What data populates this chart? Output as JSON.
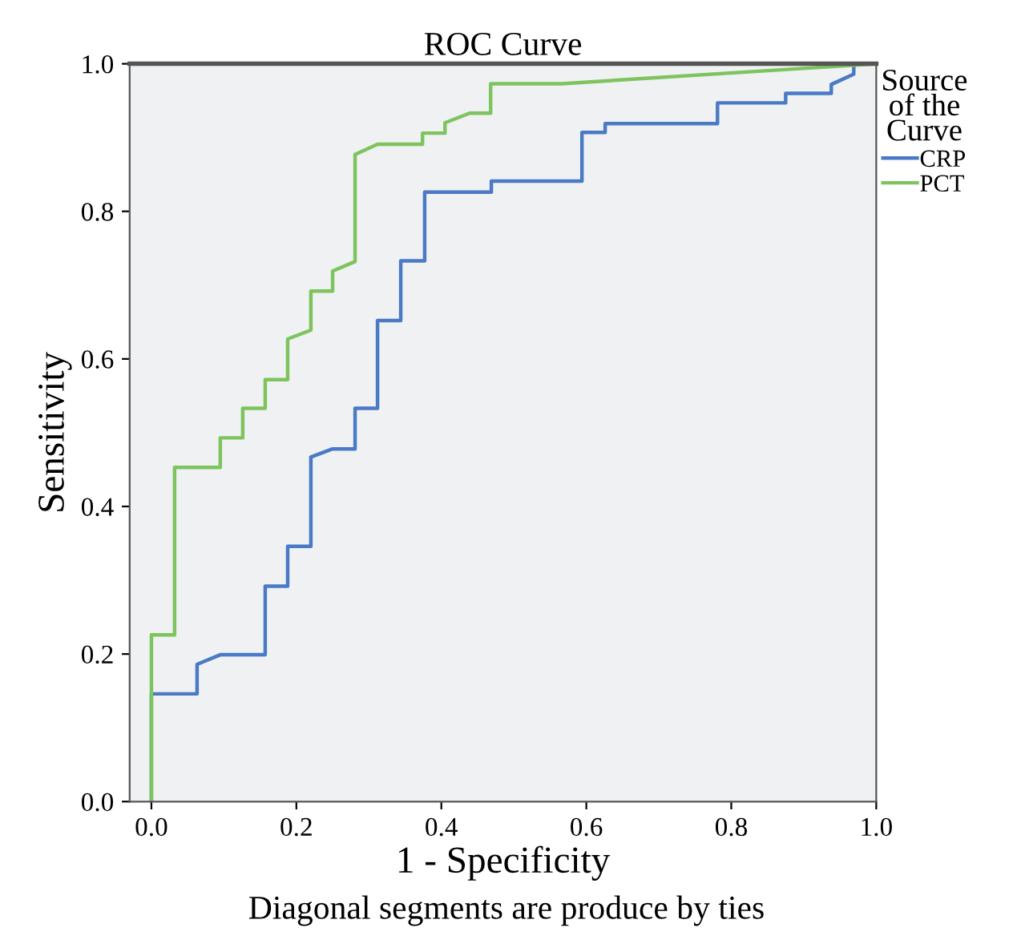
{
  "chart_data": {
    "type": "line",
    "title": "ROC Curve",
    "xlabel": "1 - Specificity",
    "ylabel": "Sensitivity",
    "legend_title": "Source\nof the\nCurve",
    "annotations": [
      "Diagonal segments are produce by ties"
    ],
    "series": [
      {
        "name": "CRP",
        "color": "#4a7ac6",
        "x": [
          0,
          0,
          0.063,
          0.063,
          0.095,
          0.157,
          0.157,
          0.188,
          0.188,
          0.22,
          0.22,
          0.25,
          0.281,
          0.281,
          0.312,
          0.312,
          0.344,
          0.344,
          0.377,
          0.377,
          0.469,
          0.469,
          0.594,
          0.594,
          0.626,
          0.626,
          0.781,
          0.781,
          0.875,
          0.875,
          0.938,
          0.938,
          0.969,
          0.969,
          1.0
        ],
        "values": [
          0,
          0.146,
          0.146,
          0.186,
          0.199,
          0.199,
          0.292,
          0.292,
          0.346,
          0.346,
          0.467,
          0.478,
          0.478,
          0.533,
          0.533,
          0.652,
          0.652,
          0.733,
          0.733,
          0.826,
          0.826,
          0.841,
          0.841,
          0.907,
          0.907,
          0.919,
          0.919,
          0.947,
          0.947,
          0.96,
          0.96,
          0.972,
          0.986,
          1.0,
          1.0
        ]
      },
      {
        "name": "PCT",
        "color": "#7ec45e",
        "x": [
          0,
          0,
          0.032,
          0.032,
          0.095,
          0.095,
          0.126,
          0.126,
          0.157,
          0.157,
          0.188,
          0.188,
          0.22,
          0.22,
          0.25,
          0.25,
          0.281,
          0.281,
          0.312,
          0.374,
          0.374,
          0.405,
          0.405,
          0.439,
          0.468,
          0.468,
          0.566,
          1.0
        ],
        "values": [
          0,
          0.226,
          0.226,
          0.453,
          0.453,
          0.493,
          0.493,
          0.533,
          0.533,
          0.572,
          0.572,
          0.627,
          0.639,
          0.692,
          0.692,
          0.719,
          0.732,
          0.877,
          0.891,
          0.891,
          0.906,
          0.906,
          0.92,
          0.933,
          0.933,
          0.973,
          0.973,
          1.0
        ]
      }
    ],
    "xlim": [
      -0.03,
      1.0
    ],
    "ylim": [
      0,
      1.0
    ],
    "xticks": [
      {
        "value": 0,
        "label": "0.0"
      },
      0.2,
      0.4,
      0.6,
      0.8,
      {
        "value": 1,
        "label": "1.0"
      }
    ],
    "yticks": [
      {
        "value": 0,
        "label": "0.0"
      },
      0.2,
      0.4,
      0.6,
      0.8,
      {
        "value": 1,
        "label": "1.0"
      }
    ],
    "grid": false,
    "legend": "top right",
    "marker": "none",
    "line_style": "solid"
  }
}
